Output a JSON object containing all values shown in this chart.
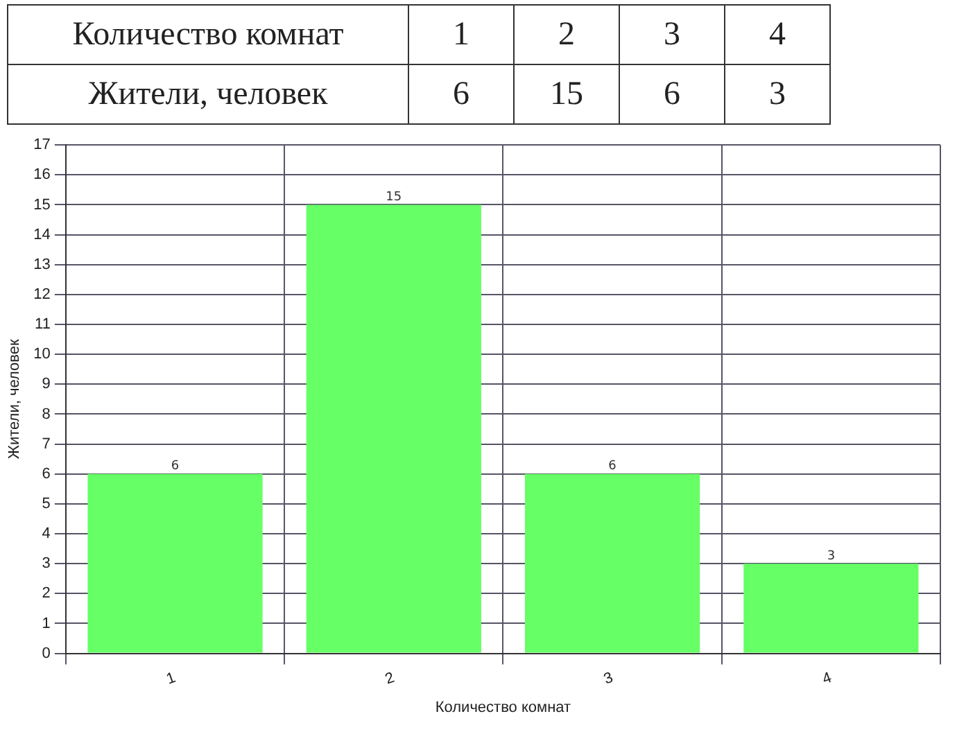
{
  "chart_data": {
    "type": "bar",
    "categories": [
      "1",
      "2",
      "3",
      "4"
    ],
    "values": [
      6,
      15,
      6,
      3
    ],
    "color": "#66ff66",
    "xlabel": "Количество комнат",
    "ylabel": "Жители, человек",
    "ylim": [
      0,
      17
    ],
    "yticks": [
      0,
      1,
      2,
      3,
      4,
      5,
      6,
      7,
      8,
      9,
      10,
      11,
      12,
      13,
      14,
      15,
      16,
      17
    ],
    "grid": true,
    "data_labels": true,
    "annotations": [
      "6",
      "15",
      "6",
      "3"
    ]
  }
}
